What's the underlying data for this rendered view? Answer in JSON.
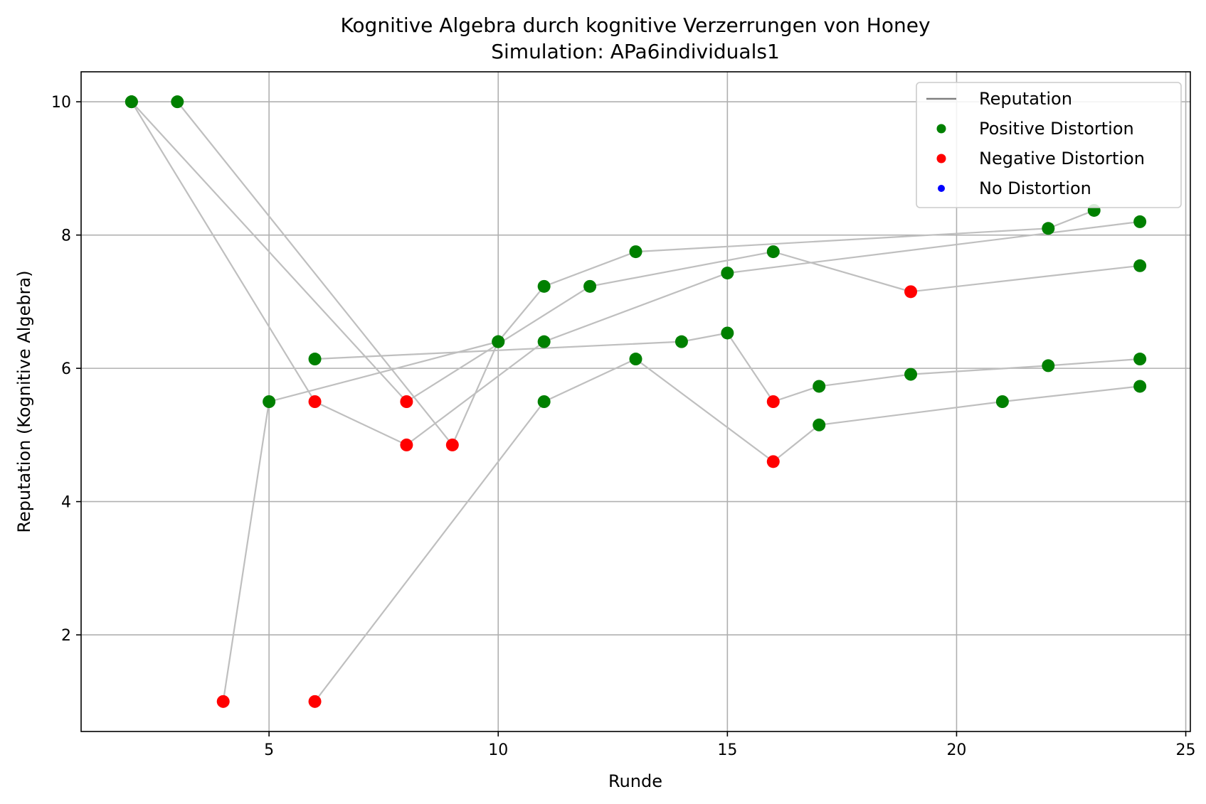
{
  "chart_data": {
    "type": "scatter",
    "title": "Kognitive Algebra durch kognitive Verzerrungen von Honey",
    "subtitle": "Simulation: APa6individuals1",
    "xlabel": "Runde",
    "ylabel": "Reputation (Kognitive Algebra)",
    "xlim": [
      0.9,
      25.1
    ],
    "ylim": [
      0.55,
      10.45
    ],
    "xticks": [
      5,
      10,
      15,
      20,
      25
    ],
    "yticks": [
      2,
      4,
      6,
      8,
      10
    ],
    "grid": true,
    "legend_position": "upper right",
    "colors": {
      "line": "#bfbfbf",
      "legend_line": "#808080",
      "positive": "#008000",
      "negative": "#ff0000",
      "none": "#0000ff"
    },
    "legend": [
      {
        "label": "Reputation",
        "kind": "line",
        "color": "#808080"
      },
      {
        "label": "Positive Distortion",
        "kind": "marker",
        "color": "#008000"
      },
      {
        "label": "Negative Distortion",
        "kind": "marker",
        "color": "#ff0000"
      },
      {
        "label": "No Distortion",
        "kind": "marker",
        "color": "#0000ff"
      }
    ],
    "series": [
      {
        "points": [
          {
            "x": 4,
            "y": 1.0,
            "d": "negative"
          },
          {
            "x": 5,
            "y": 5.5,
            "d": "positive"
          },
          {
            "x": 10,
            "y": 6.4,
            "d": "positive"
          },
          {
            "x": 11,
            "y": 7.23,
            "d": "positive"
          },
          {
            "x": 13,
            "y": 7.75,
            "d": "positive"
          },
          {
            "x": 22,
            "y": 8.1,
            "d": "positive"
          },
          {
            "x": 23,
            "y": 8.37,
            "d": "positive"
          }
        ]
      },
      {
        "points": [
          {
            "x": 2,
            "y": 10.0,
            "d": "positive"
          },
          {
            "x": 6,
            "y": 5.5,
            "d": "negative"
          },
          {
            "x": 8,
            "y": 4.85,
            "d": "negative"
          },
          {
            "x": 11,
            "y": 6.4,
            "d": "positive"
          },
          {
            "x": 15,
            "y": 7.43,
            "d": "positive"
          },
          {
            "x": 24,
            "y": 8.2,
            "d": "positive"
          }
        ]
      },
      {
        "points": [
          {
            "x": 2,
            "y": 10.0,
            "d": "positive"
          },
          {
            "x": 8,
            "y": 5.5,
            "d": "negative"
          },
          {
            "x": 12,
            "y": 7.23,
            "d": "positive"
          },
          {
            "x": 16,
            "y": 7.75,
            "d": "positive"
          },
          {
            "x": 19,
            "y": 7.15,
            "d": "negative"
          },
          {
            "x": 24,
            "y": 7.54,
            "d": "positive"
          }
        ]
      },
      {
        "points": [
          {
            "x": 3,
            "y": 10.0,
            "d": "positive"
          },
          {
            "x": 9,
            "y": 4.85,
            "d": "negative"
          },
          {
            "x": 10,
            "y": 6.4,
            "d": "positive"
          }
        ]
      },
      {
        "points": [
          {
            "x": 6,
            "y": 6.14,
            "d": "positive"
          },
          {
            "x": 14,
            "y": 6.4,
            "d": "positive"
          },
          {
            "x": 15,
            "y": 6.53,
            "d": "positive"
          },
          {
            "x": 16,
            "y": 5.5,
            "d": "negative"
          },
          {
            "x": 17,
            "y": 5.73,
            "d": "positive"
          },
          {
            "x": 19,
            "y": 5.91,
            "d": "positive"
          },
          {
            "x": 22,
            "y": 6.04,
            "d": "positive"
          },
          {
            "x": 24,
            "y": 6.14,
            "d": "positive"
          }
        ]
      },
      {
        "points": [
          {
            "x": 6,
            "y": 1.0,
            "d": "negative"
          },
          {
            "x": 11,
            "y": 5.5,
            "d": "positive"
          },
          {
            "x": 13,
            "y": 6.14,
            "d": "positive"
          },
          {
            "x": 16,
            "y": 4.6,
            "d": "negative"
          },
          {
            "x": 17,
            "y": 5.15,
            "d": "positive"
          },
          {
            "x": 21,
            "y": 5.5,
            "d": "positive"
          },
          {
            "x": 24,
            "y": 5.73,
            "d": "positive"
          }
        ]
      }
    ]
  }
}
